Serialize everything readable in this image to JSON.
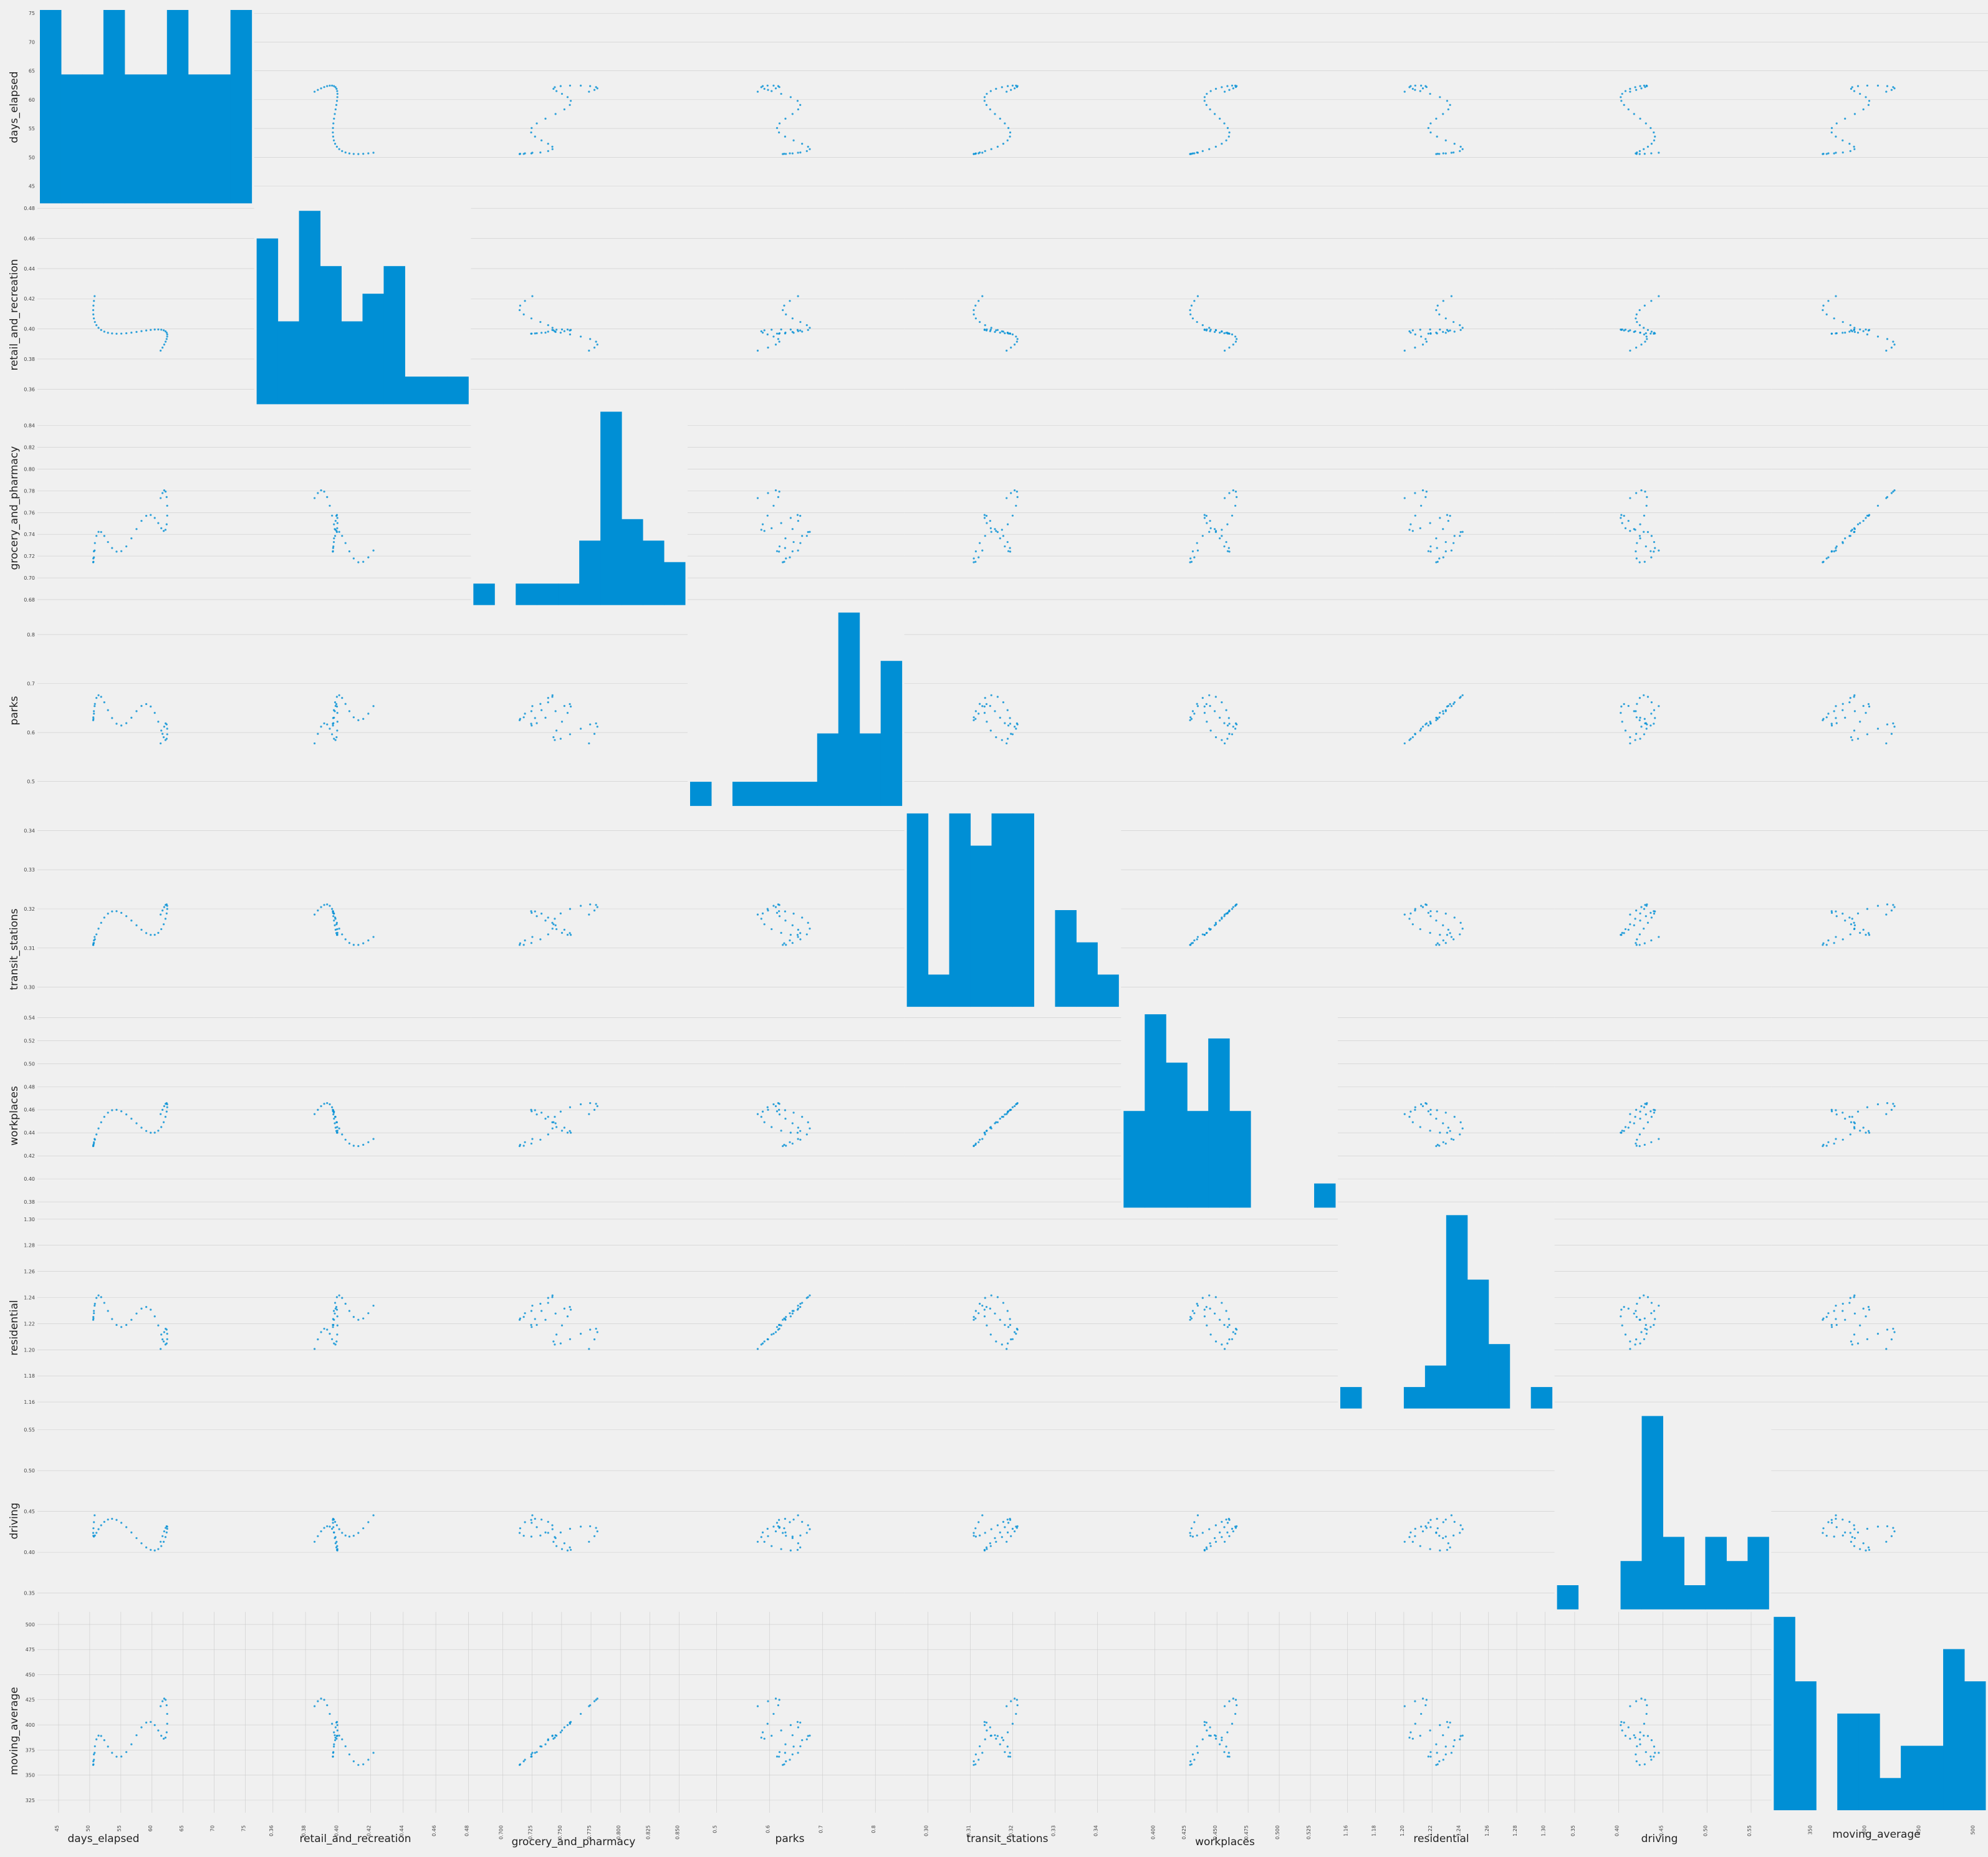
{
  "chart_data": {
    "type": "scatter_matrix",
    "variables": [
      "days_elapsed",
      "retail_and_recreation",
      "grocery_and_pharmacy",
      "parks",
      "transit_stations",
      "workplaces",
      "residential",
      "driving",
      "moving_average"
    ],
    "colors": {
      "background": "#f0f0f0",
      "bars": "#008fd5",
      "points": "#008fd5",
      "grid": "#cbcbcb"
    },
    "grid": true,
    "diagonal": "histogram",
    "bins": 10,
    "y_ticks": {
      "days_elapsed": [
        "45",
        "50",
        "55",
        "60",
        "65",
        "70",
        "75"
      ],
      "retail_and_recreation": [
        "0.36",
        "0.38",
        "0.40",
        "0.42",
        "0.44",
        "0.46",
        "0.48"
      ],
      "grocery_and_pharmacy": [
        "0.68",
        "0.70",
        "0.72",
        "0.74",
        "0.76",
        "0.78",
        "0.80",
        "0.82",
        "0.84"
      ],
      "parks": [
        "0.5",
        "0.6",
        "0.7",
        "0.8"
      ],
      "transit_stations": [
        "0.30",
        "0.31",
        "0.32",
        "0.33",
        "0.34"
      ],
      "workplaces": [
        "0.38",
        "0.40",
        "0.42",
        "0.44",
        "0.46",
        "0.48",
        "0.50",
        "0.52",
        "0.54"
      ],
      "residential": [
        "1.16",
        "1.18",
        "1.20",
        "1.22",
        "1.24",
        "1.26",
        "1.28",
        "1.30"
      ],
      "driving": [
        "0.35",
        "0.40",
        "0.45",
        "0.50",
        "0.55"
      ],
      "moving_average": [
        "325",
        "350",
        "375",
        "400",
        "425",
        "450",
        "475",
        "500"
      ]
    },
    "x_ticks": {
      "days_elapsed": [
        "45",
        "50",
        "55",
        "60",
        "65",
        "70",
        "75"
      ],
      "retail_and_recreation": [
        "0.36",
        "0.38",
        "0.40",
        "0.42",
        "0.44",
        "0.46",
        "0.48"
      ],
      "grocery_and_pharmacy": [
        "0.700",
        "0.725",
        "0.750",
        "0.775",
        "0.800",
        "0.825",
        "0.850"
      ],
      "parks": [
        "0.5",
        "0.6",
        "0.7",
        "0.8"
      ],
      "transit_stations": [
        "0.30",
        "0.31",
        "0.32",
        "0.33",
        "0.34"
      ],
      "workplaces": [
        "0.400",
        "0.425",
        "0.450",
        "0.475",
        "0.500",
        "0.525"
      ],
      "residential": [
        "1.16",
        "1.18",
        "1.20",
        "1.22",
        "1.24",
        "1.26",
        "1.28",
        "1.30"
      ],
      "driving": [
        "0.35",
        "0.40",
        "0.45",
        "0.50",
        "0.55"
      ],
      "moving_average": [
        "350",
        "400",
        "450",
        "500"
      ]
    },
    "ranges": {
      "days_elapsed": [
        42,
        76
      ],
      "retail_and_recreation": [
        0.35,
        0.48
      ],
      "grocery_and_pharmacy": [
        0.675,
        0.855
      ],
      "parks": [
        0.45,
        0.85
      ],
      "transit_stations": [
        0.295,
        0.345
      ],
      "workplaces": [
        0.375,
        0.545
      ],
      "residential": [
        1.155,
        1.305
      ],
      "driving": [
        0.33,
        0.57
      ],
      "moving_average": [
        315,
        510
      ]
    },
    "histograms": {
      "days_elapsed": [
        3,
        2,
        2,
        3,
        2,
        2,
        3,
        2,
        2,
        3
      ],
      "retail_and_recreation": [
        6,
        3,
        7,
        5,
        3,
        4,
        5,
        1,
        1,
        1
      ],
      "grocery_and_pharmacy": [
        1,
        0,
        1,
        1,
        1,
        3,
        9,
        4,
        3,
        2
      ],
      "parks": [
        1,
        0,
        1,
        1,
        1,
        1,
        3,
        8,
        3,
        6
      ],
      "transit_stations": [
        6,
        1,
        6,
        5,
        6,
        6,
        0,
        3,
        2,
        1
      ],
      "workplaces": [
        4,
        8,
        6,
        4,
        7,
        4,
        0,
        0,
        0,
        1
      ],
      "residential": [
        1,
        0,
        0,
        1,
        2,
        9,
        6,
        3,
        0,
        1
      ],
      "driving": [
        1,
        0,
        0,
        2,
        8,
        3,
        1,
        3,
        2,
        3
      ],
      "moving_average": [
        6,
        4,
        0,
        3,
        3,
        1,
        2,
        2,
        5,
        4
      ]
    }
  }
}
